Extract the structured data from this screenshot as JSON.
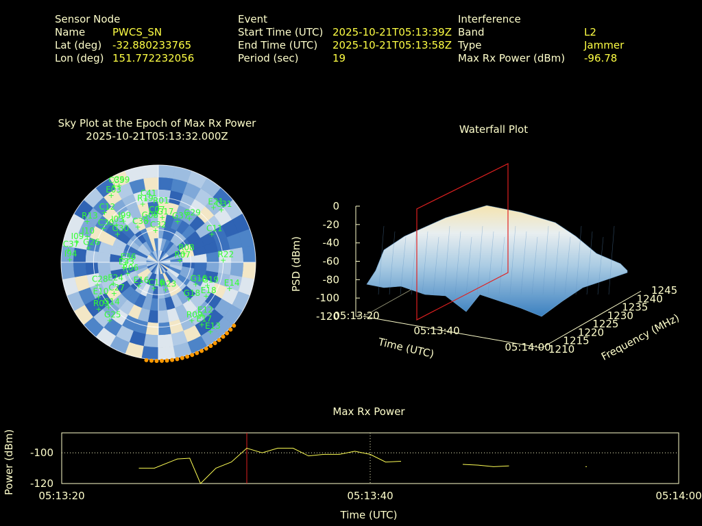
{
  "header": {
    "sensor": {
      "title": "Sensor Node",
      "name_label": "Name",
      "name": "PWCS_SN",
      "lat_label": "Lat (deg)",
      "lat": "-32.880233765",
      "lon_label": "Lon (deg)",
      "lon": "151.772232056"
    },
    "event": {
      "title": "Event",
      "start_label": "Start Time (UTC)",
      "start": "2025-10-21T05:13:39Z",
      "end_label": "End Time (UTC)",
      "end": "2025-10-21T05:13:58Z",
      "period_label": "Period (sec)",
      "period": "19"
    },
    "interference": {
      "title": "Interference",
      "band_label": "Band",
      "band": "L2",
      "type_label": "Type",
      "type": "Jammer",
      "power_label": "Max Rx Power (dBm)",
      "power": "-96.78"
    }
  },
  "sky": {
    "title": "Sky Plot at the Epoch of Max Rx Power",
    "epoch": "2025-10-21T05:13:32.000Z",
    "satellites": [
      {
        "id": "C39",
        "az": 330,
        "el": 8
      },
      {
        "id": "C59",
        "az": 333,
        "el": 10
      },
      {
        "id": "E03",
        "az": 325,
        "el": 14
      },
      {
        "id": "C41",
        "az": 349,
        "el": 30
      },
      {
        "id": "R19",
        "az": 345,
        "el": 34
      },
      {
        "id": "R01",
        "az": 0,
        "el": 38
      },
      {
        "id": "C12",
        "az": 313,
        "el": 22
      },
      {
        "id": "C07",
        "az": 355,
        "el": 46
      },
      {
        "id": "G17",
        "az": 5,
        "el": 48
      },
      {
        "id": "G08",
        "az": 345,
        "el": 50
      },
      {
        "id": "R13",
        "az": 300,
        "el": 14
      },
      {
        "id": "C30",
        "az": 302,
        "el": 30
      },
      {
        "id": "I03",
        "az": 312,
        "el": 38
      },
      {
        "id": "I99",
        "az": 320,
        "el": 40
      },
      {
        "id": "C38",
        "az": 330,
        "el": 52
      },
      {
        "id": "G30",
        "az": 305,
        "el": 44
      },
      {
        "id": "E21",
        "az": 45,
        "el": 18
      },
      {
        "id": "C31",
        "az": 50,
        "el": 14
      },
      {
        "id": "G29",
        "az": 35,
        "el": 40
      },
      {
        "id": "G37",
        "az": 25,
        "el": 48
      },
      {
        "id": "I09",
        "az": 284,
        "el": 12
      },
      {
        "id": "I10",
        "az": 290,
        "el": 20
      },
      {
        "id": "C37",
        "az": 278,
        "el": 6
      },
      {
        "id": "G26",
        "az": 282,
        "el": 24
      },
      {
        "id": "I94",
        "az": 272,
        "el": 8
      },
      {
        "id": "C32",
        "az": 355,
        "el": 60
      },
      {
        "id": "C11",
        "az": 62,
        "el": 34
      },
      {
        "id": "R08",
        "az": 70,
        "el": 65
      },
      {
        "id": "R07",
        "az": 85,
        "el": 70
      },
      {
        "id": "R22",
        "az": 88,
        "el": 30
      },
      {
        "id": "E36",
        "az": 270,
        "el": 60
      },
      {
        "id": "E33",
        "az": 262,
        "el": 58
      },
      {
        "id": "R06",
        "az": 250,
        "el": 60
      },
      {
        "id": "G19",
        "az": 115,
        "el": 40
      },
      {
        "id": "E24",
        "az": 245,
        "el": 44
      },
      {
        "id": "E14",
        "az": 110,
        "el": 20
      },
      {
        "id": "E18",
        "az": 125,
        "el": 36
      },
      {
        "id": "G18",
        "az": 140,
        "el": 46
      },
      {
        "id": "G16",
        "az": 120,
        "el": 50
      },
      {
        "id": "E16",
        "az": 220,
        "el": 62
      },
      {
        "id": "C16",
        "az": 190,
        "el": 66
      },
      {
        "id": "R23",
        "az": 165,
        "el": 64
      },
      {
        "id": "C27",
        "az": 235,
        "el": 40
      },
      {
        "id": "R03",
        "az": 232,
        "el": 20
      },
      {
        "id": "E10",
        "az": 240,
        "el": 26
      },
      {
        "id": "C28",
        "az": 250,
        "el": 30
      },
      {
        "id": "G14",
        "az": 228,
        "el": 28
      },
      {
        "id": "G25",
        "az": 220,
        "el": 20
      },
      {
        "id": "E12",
        "az": 140,
        "el": 26
      },
      {
        "id": "E17",
        "az": 145,
        "el": 20
      },
      {
        "id": "R09",
        "az": 150,
        "el": 28
      },
      {
        "id": "E13",
        "az": 143,
        "el": 10
      }
    ]
  },
  "waterfall": {
    "title": "Waterfall Plot",
    "zlabel": "PSD (dBm)",
    "xlabel": "Time (UTC)",
    "ylabel": "Frequency (MHz)",
    "zticks": [
      "0",
      "-20",
      "-40",
      "-60",
      "-80",
      "-100",
      "-120"
    ],
    "xticks": [
      "05:13:20",
      "05:13:40",
      "05:14:00"
    ],
    "yticks": [
      "1210",
      "1215",
      "1220",
      "1225",
      "1230",
      "1235",
      "1240",
      "1245"
    ]
  },
  "chart_data": {
    "type": "line",
    "title": "Max Rx Power",
    "xlabel": "Time (UTC)",
    "ylabel": "Power (dBm)",
    "xticks": [
      "05:13:20",
      "05:13:40",
      "05:14:00"
    ],
    "yticks": [
      "-100",
      "-120"
    ],
    "xlim": [
      0,
      40
    ],
    "ylim": [
      -120,
      -87
    ],
    "marker_time_s": 12,
    "series": [
      {
        "x": [
          5,
          6,
          7.5,
          8.3,
          9.0,
          10.0,
          11.0,
          12.0,
          13.0,
          14.0,
          15.0,
          16.0,
          17.0,
          18.0,
          19.0,
          20.0,
          21.0,
          22.0
        ],
        "y": [
          -110,
          -110,
          -104,
          -103.5,
          -120,
          -110,
          -106,
          -97,
          -100,
          -97,
          -97,
          -102,
          -101,
          -101,
          -99,
          -101,
          -106,
          -105.5
        ]
      },
      {
        "x": [
          26.0,
          27.0,
          28.0,
          29.0
        ],
        "y": [
          -107.5,
          -108,
          -109,
          -108.5
        ]
      },
      {
        "x": [
          34.0
        ],
        "y": [
          -109
        ]
      }
    ]
  },
  "colors": {
    "label": "#ffffcc",
    "value": "#ffff44",
    "sat": "#33ff33",
    "marker": "#e02020",
    "trace": "#ffff55",
    "frame": "#ffffcc",
    "orange": "#ff9900"
  }
}
